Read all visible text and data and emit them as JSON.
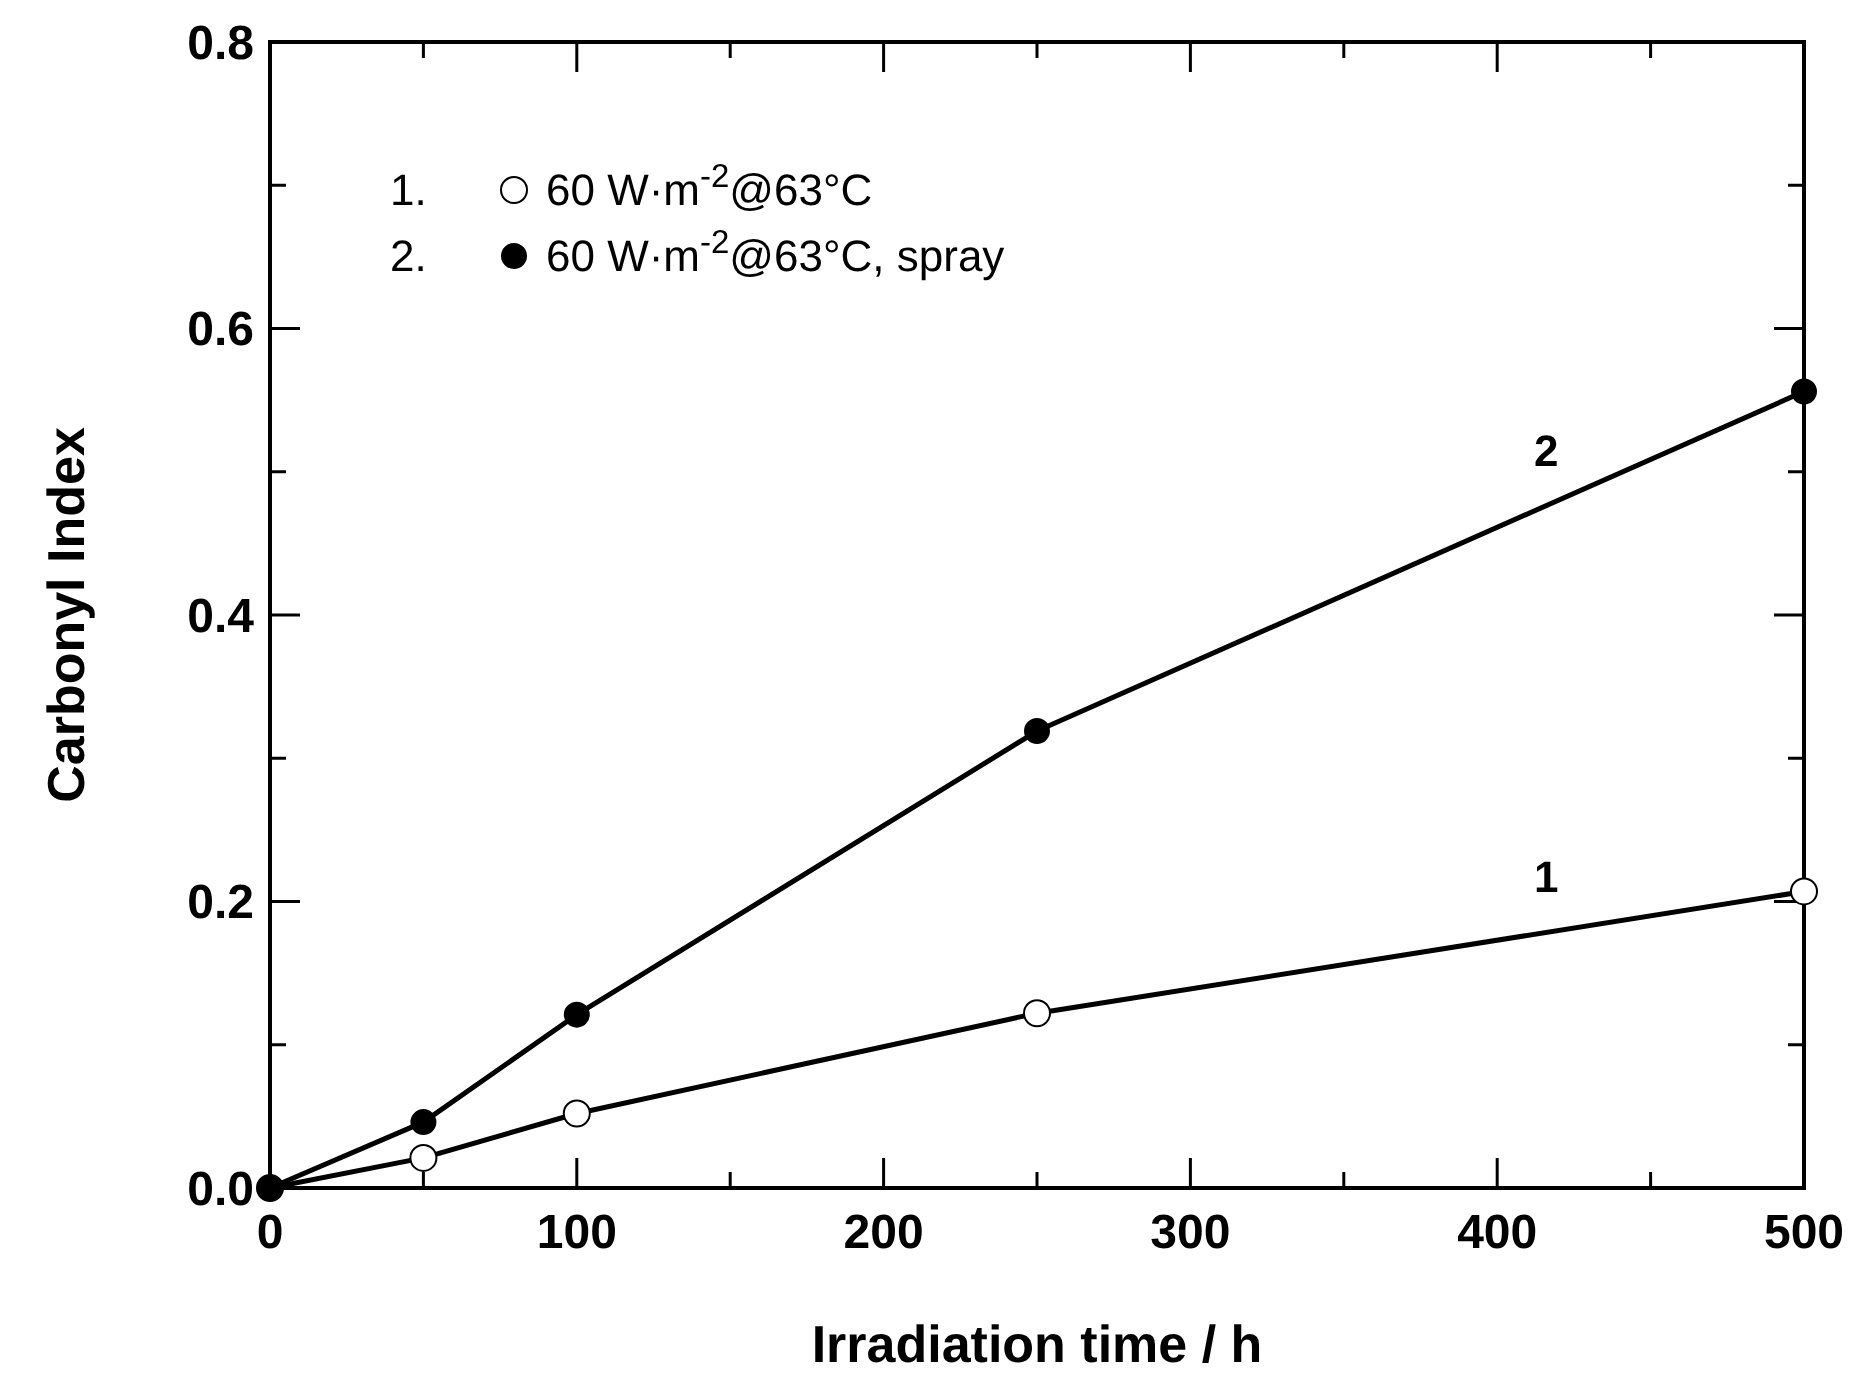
{
  "chart_data": {
    "type": "line",
    "xlabel": "Irradiation time / h",
    "ylabel": "Carbonyl Index",
    "x": [
      0,
      50,
      100,
      250,
      500
    ],
    "series": [
      {
        "name": "60 W·m$^{-2}$@63°C",
        "color": "#000000",
        "values": [
          0,
          0.021,
          0.052,
          0.122,
          0.207
        ]
      },
      {
        "name": "60 W·m$^{-2}$@63°C, spray",
        "color": "#000000",
        "values": [
          0,
          0.046,
          0.121,
          0.319,
          0.556
        ]
      }
    ],
    "xlim": [
      0,
      500
    ],
    "ylim": [
      0,
      0.8
    ],
    "xticks": [
      0,
      {
        "value": 50,
        "label": null
      },
      100,
      {
        "value": 150,
        "label": null
      },
      200,
      {
        "value": 250,
        "label": null
      },
      300,
      {
        "value": 350,
        "label": null
      },
      400,
      {
        "value": 450,
        "label": null
      },
      500
    ],
    "yticks": [
      "0.0",
      {
        "value": 0.1,
        "label": null
      },
      {
        "value": 0.2,
        "label": "0.2"
      },
      {
        "value": 0.3,
        "label": null
      },
      {
        "value": 0.4,
        "label": "0.4"
      },
      {
        "value": 0.5,
        "label": null
      },
      {
        "value": 0.6,
        "label": "0.6"
      },
      {
        "value": 0.7,
        "label": null
      },
      {
        "value": 0.8,
        "label": "0.8"
      }
    ],
    "annotations": [
      {
        "text": "2",
        "x": 416,
        "y": 0.476
      },
      {
        "text": "1",
        "x": 416,
        "y": 0.178
      },
      "1.",
      "2."
    ],
    "legend": "top left",
    "grid": false,
    "line_style": "solid",
    "marker": "circle"
  }
}
